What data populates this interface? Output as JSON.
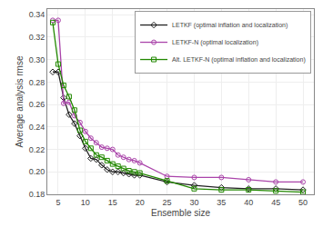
{
  "chart_data": {
    "type": "line",
    "x": [
      4,
      5,
      6,
      7,
      8,
      9,
      10,
      11,
      12,
      13,
      14,
      15,
      16,
      17,
      18,
      19,
      20,
      25,
      30,
      35,
      40,
      45,
      50
    ],
    "series": [
      {
        "name": "LETKF (optimal inflation and localization)",
        "color": "#222222",
        "marker": "diamond",
        "values": [
          0.289,
          0.289,
          0.266,
          0.251,
          0.243,
          0.232,
          0.221,
          0.212,
          0.211,
          0.206,
          0.202,
          0.2,
          0.2,
          0.199,
          0.198,
          0.197,
          0.197,
          0.191,
          0.188,
          0.186,
          0.185,
          0.185,
          0.184
        ]
      },
      {
        "name": "LETKF-N (optimal localization)",
        "color": "#aa44aa",
        "marker": "circle",
        "values": [
          0.335,
          0.335,
          0.261,
          0.262,
          0.25,
          0.244,
          0.236,
          0.23,
          0.226,
          0.222,
          0.221,
          0.22,
          0.215,
          0.213,
          0.211,
          0.21,
          0.208,
          0.196,
          0.195,
          0.195,
          0.193,
          0.191,
          0.191
        ]
      },
      {
        "name": "Alt. LETKF-N (optimal inflation and localization)",
        "color": "#228800",
        "marker": "square",
        "values": [
          0.333,
          0.296,
          0.277,
          0.267,
          0.255,
          0.237,
          0.227,
          0.221,
          0.215,
          0.213,
          0.21,
          0.207,
          0.205,
          0.203,
          0.201,
          0.2,
          0.199,
          0.192,
          0.185,
          0.184,
          0.184,
          0.183,
          0.182
        ]
      }
    ],
    "x_label": "Ensemble size",
    "y_label": "Average analysis rmse",
    "xlim": [
      3,
      52
    ],
    "ylim": [
      0.18,
      0.345
    ],
    "xticks": [
      5,
      10,
      15,
      20,
      25,
      30,
      35,
      40,
      45,
      50
    ],
    "yticks": [
      0.18,
      {
        "value": 0.2,
        "label": "0.20"
      },
      0.22,
      0.24,
      0.26,
      0.28,
      {
        "value": 0.3,
        "label": "0.30"
      },
      0.32,
      0.34
    ],
    "grid": true,
    "legend": "upper right"
  }
}
